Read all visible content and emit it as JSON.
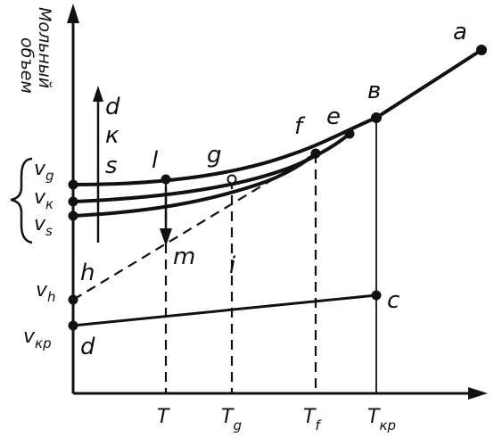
{
  "y_axis_title": [
    "Мольный",
    "объем"
  ],
  "point_labels": {
    "a": "a",
    "b": "в",
    "c": "c",
    "d": "d",
    "e": "e",
    "f": "f",
    "g": "g",
    "l": "l",
    "m": "m",
    "h": "h",
    "i": "i"
  },
  "legend_stack": [
    "d",
    "к",
    "s"
  ],
  "volume_labels": [
    {
      "main": "v",
      "sub": "g"
    },
    {
      "main": "v",
      "sub": "к"
    },
    {
      "main": "v",
      "sub": "s"
    },
    {
      "main": "v",
      "sub": "h"
    },
    {
      "main": "v",
      "sub": "кр"
    }
  ],
  "temperature_labels": [
    {
      "main": "T",
      "sub": ""
    },
    {
      "main": "T",
      "sub": "g"
    },
    {
      "main": "T",
      "sub": "f"
    },
    {
      "main": "T",
      "sub": "кр"
    }
  ]
}
